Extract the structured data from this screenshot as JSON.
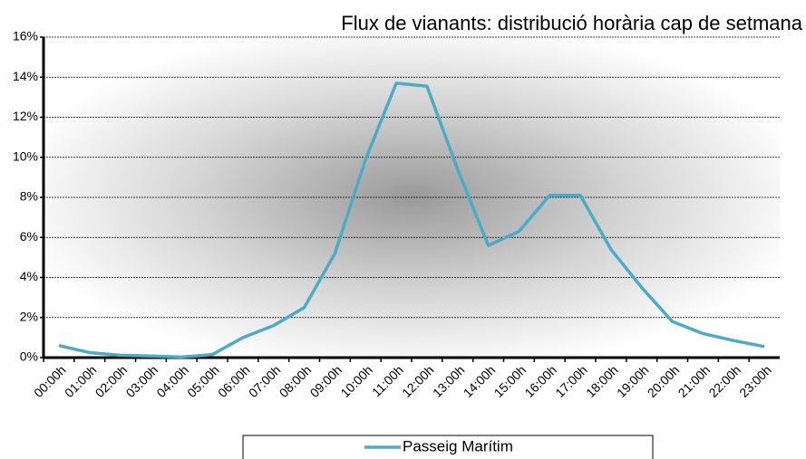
{
  "chart_data": {
    "type": "line",
    "title": "Flux de vianants: distribució horària cap de setmana",
    "categories": [
      "00:00h",
      "01:00h",
      "02:00h",
      "03:00h",
      "04:00h",
      "05:00h",
      "06:00h",
      "07:00h",
      "08:00h",
      "09:00h",
      "10:00h",
      "11:00h",
      "12:00h",
      "13:00h",
      "14:00h",
      "15:00h",
      "16:00h",
      "17:00h",
      "18:00h",
      "19:00h",
      "20:00h",
      "21:00h",
      "22:00h",
      "23:00h"
    ],
    "series": [
      {
        "name": "Passeig Marítim",
        "color": "#4bacc6",
        "values": [
          0.6,
          0.25,
          0.12,
          0.08,
          0.03,
          0.15,
          1.0,
          1.6,
          2.5,
          5.2,
          9.9,
          13.7,
          13.55,
          9.4,
          5.6,
          6.3,
          8.1,
          8.1,
          5.4,
          3.5,
          1.8,
          1.2,
          0.85,
          0.55
        ]
      }
    ],
    "ylim": [
      0,
      16
    ],
    "yticks": [
      {
        "value": 0,
        "label": "0%"
      },
      {
        "value": 2,
        "label": "2%"
      },
      {
        "value": 4,
        "label": "4%"
      },
      {
        "value": 6,
        "label": "6%"
      },
      {
        "value": 8,
        "label": "8%"
      },
      {
        "value": 10,
        "label": "10%"
      },
      {
        "value": 12,
        "label": "12%"
      },
      {
        "value": 14,
        "label": "14%"
      },
      {
        "value": 16,
        "label": "16%"
      }
    ],
    "grid": true,
    "legend": "bottom"
  }
}
